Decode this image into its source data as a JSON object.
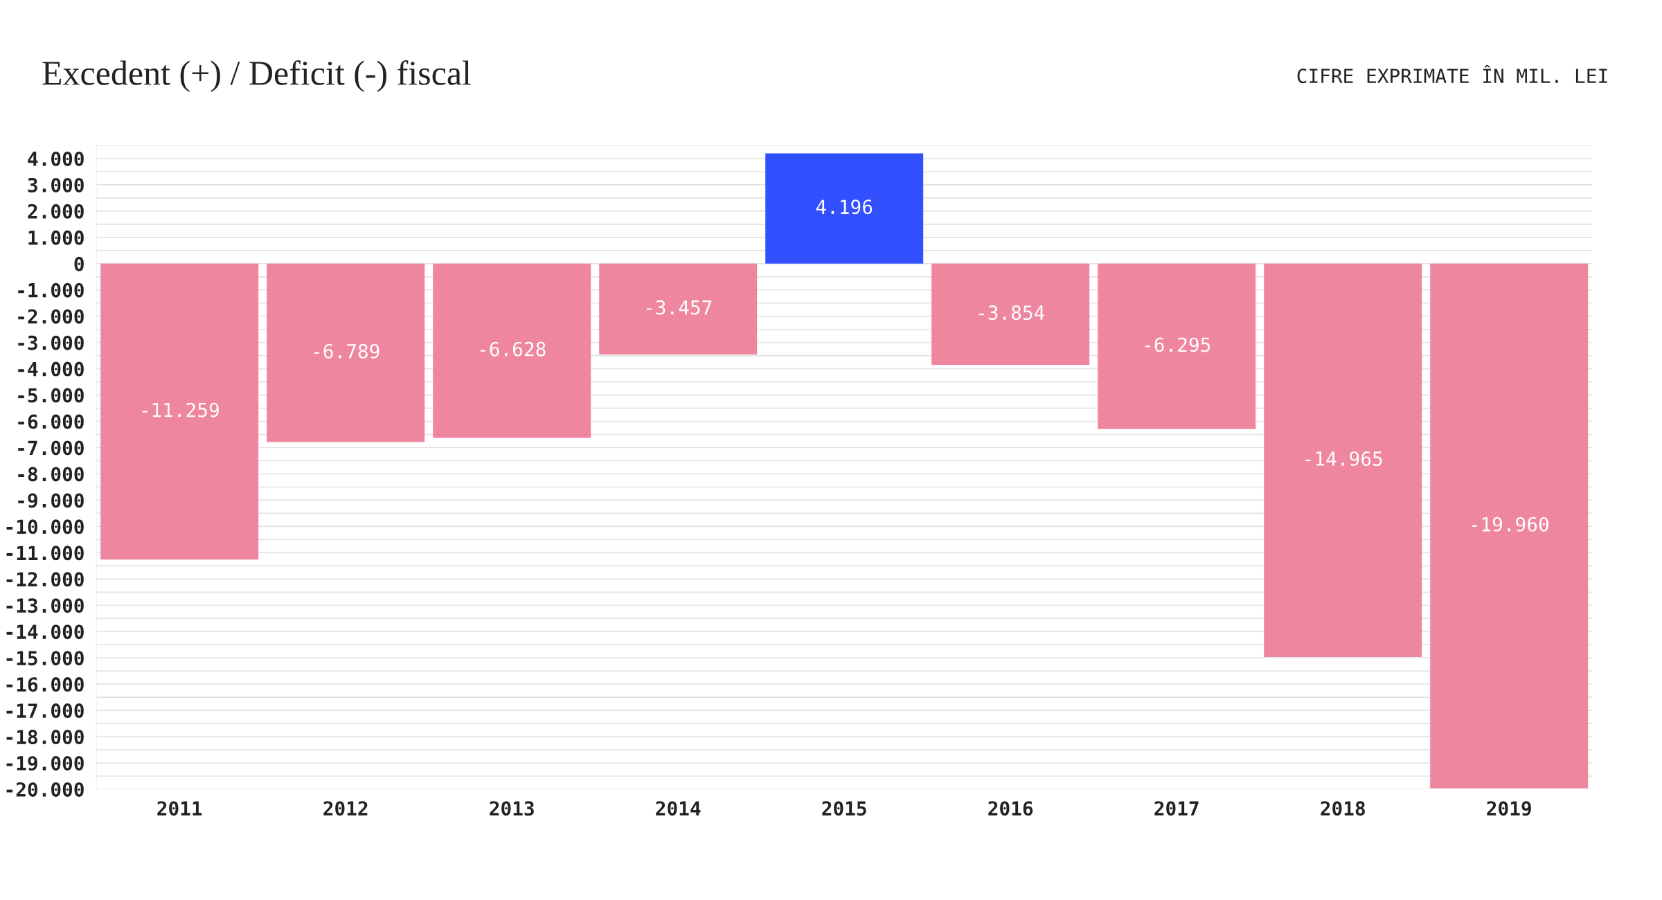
{
  "chart_data": {
    "type": "bar",
    "title": "Excedent (+) / Deficit (-) fiscal",
    "subtitle": "CIFRE EXPRIMATE ÎN MIL. LEI",
    "categories": [
      "2011",
      "2012",
      "2013",
      "2014",
      "2015",
      "2016",
      "2017",
      "2018",
      "2019"
    ],
    "values": [
      -11259,
      -6789,
      -6628,
      -3457,
      4196,
      -3854,
      -6295,
      -14965,
      -19960
    ],
    "value_labels": [
      "-11.259",
      "-6.789",
      "-6.628",
      "-3.457",
      "4.196",
      "-3.854",
      "-6.295",
      "-14.965",
      "-19.960"
    ],
    "colors": [
      "#ef869f",
      "#ef869f",
      "#ef869f",
      "#ef869f",
      "#3350ff",
      "#ef869f",
      "#ef869f",
      "#ef869f",
      "#ef869f"
    ],
    "ylim": [
      -20000,
      4500
    ],
    "yticks": [
      {
        "value": 4500,
        "label": null
      },
      {
        "value": 4000,
        "label": "4.000"
      },
      {
        "value": 3500,
        "label": null
      },
      {
        "value": 3000,
        "label": "3.000"
      },
      {
        "value": 2500,
        "label": null
      },
      {
        "value": 2000,
        "label": "2.000"
      },
      {
        "value": 1500,
        "label": null
      },
      {
        "value": 1000,
        "label": "1.000"
      },
      {
        "value": 500,
        "label": null
      },
      {
        "value": 0,
        "label": "0"
      },
      {
        "value": -500,
        "label": null
      },
      {
        "value": -1000,
        "label": "-1.000"
      },
      {
        "value": -1500,
        "label": null
      },
      {
        "value": -2000,
        "label": "-2.000"
      },
      {
        "value": -2500,
        "label": null
      },
      {
        "value": -3000,
        "label": "-3.000"
      },
      {
        "value": -3500,
        "label": null
      },
      {
        "value": -4000,
        "label": "-4.000"
      },
      {
        "value": -4500,
        "label": null
      },
      {
        "value": -5000,
        "label": "-5.000"
      },
      {
        "value": -5500,
        "label": null
      },
      {
        "value": -6000,
        "label": "-6.000"
      },
      {
        "value": -6500,
        "label": null
      },
      {
        "value": -7000,
        "label": "-7.000"
      },
      {
        "value": -7500,
        "label": null
      },
      {
        "value": -8000,
        "label": "-8.000"
      },
      {
        "value": -8500,
        "label": null
      },
      {
        "value": -9000,
        "label": "-9.000"
      },
      {
        "value": -9500,
        "label": null
      },
      {
        "value": -10000,
        "label": "-10.000"
      },
      {
        "value": -10500,
        "label": null
      },
      {
        "value": -11000,
        "label": "-11.000"
      },
      {
        "value": -11500,
        "label": null
      },
      {
        "value": -12000,
        "label": "-12.000"
      },
      {
        "value": -12500,
        "label": null
      },
      {
        "value": -13000,
        "label": "-13.000"
      },
      {
        "value": -13500,
        "label": null
      },
      {
        "value": -14000,
        "label": "-14.000"
      },
      {
        "value": -14500,
        "label": null
      },
      {
        "value": -15000,
        "label": "-15.000"
      },
      {
        "value": -15500,
        "label": null
      },
      {
        "value": -16000,
        "label": "-16.000"
      },
      {
        "value": -16500,
        "label": null
      },
      {
        "value": -17000,
        "label": "-17.000"
      },
      {
        "value": -17500,
        "label": null
      },
      {
        "value": -18000,
        "label": "-18.000"
      },
      {
        "value": -18500,
        "label": null
      },
      {
        "value": -19000,
        "label": "-19.000"
      },
      {
        "value": -19500,
        "label": null
      },
      {
        "value": -20000,
        "label": "-20.000"
      }
    ],
    "grid": "y",
    "legend": false
  }
}
